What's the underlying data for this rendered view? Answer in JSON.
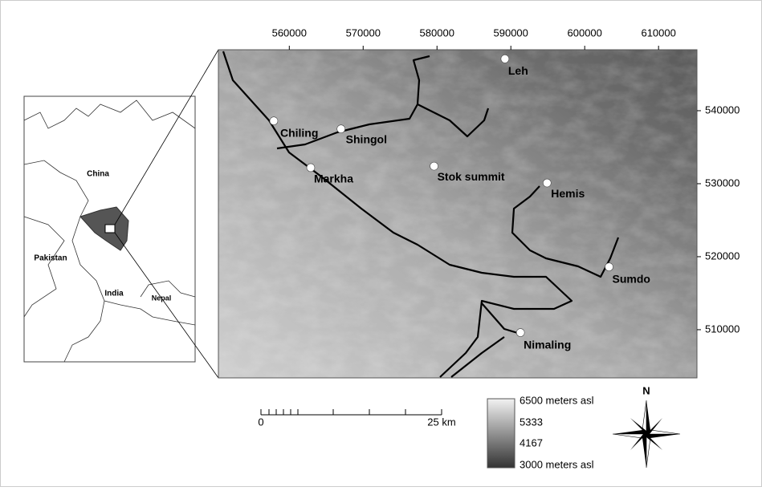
{
  "map": {
    "xlim": [
      550400,
      615200
    ],
    "ylim": [
      503400,
      548350
    ],
    "xticks": [
      560000,
      570000,
      580000,
      590000,
      600000,
      610000
    ],
    "yticks": [
      540000,
      530000,
      520000,
      510000
    ],
    "places": [
      {
        "name": "Leh",
        "x": 589200,
        "y": 547100
      },
      {
        "name": "Chiling",
        "x": 557900,
        "y": 538600
      },
      {
        "name": "Shingol",
        "x": 567000,
        "y": 537500
      },
      {
        "name": "Markha",
        "x": 562900,
        "y": 532200
      },
      {
        "name": "Stok summit",
        "x": 579600,
        "y": 532400
      },
      {
        "name": "Hemis",
        "x": 594900,
        "y": 530100
      },
      {
        "name": "Sumdo",
        "x": 603300,
        "y": 518600
      },
      {
        "name": "Nimaling",
        "x": 591300,
        "y": 509600
      }
    ]
  },
  "inset": {
    "labels": [
      "China",
      "Pakistan",
      "India",
      "Nepal"
    ]
  },
  "scale_bar": {
    "start": "0",
    "end": "25 km"
  },
  "legend": {
    "top": "6500 meters asl",
    "mid_high": "5333",
    "mid_low": "4167",
    "bottom": "3000 meters asl"
  },
  "compass": {
    "north": "N"
  }
}
